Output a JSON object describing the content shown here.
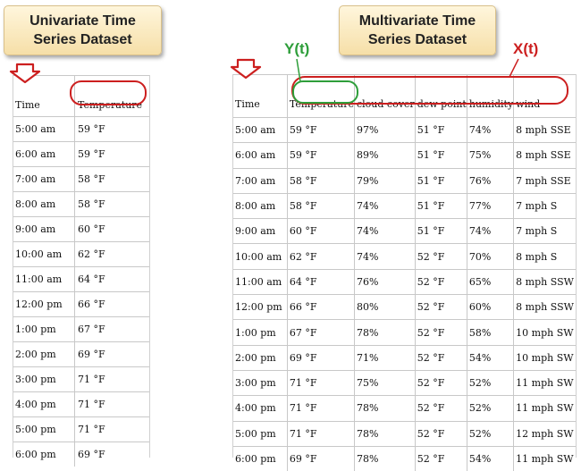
{
  "colors": {
    "annotation_red": "#cc1f1f",
    "annotation_green": "#2e9e3a",
    "title_fill": "#f6dfa8"
  },
  "univariate": {
    "title_line1": "Univariate Time",
    "title_line2": "Series Dataset",
    "headers": [
      "Time",
      "Temperature"
    ],
    "rows": [
      [
        "5:00 am",
        "59 °F"
      ],
      [
        "6:00 am",
        "59 °F"
      ],
      [
        "7:00 am",
        "58 °F"
      ],
      [
        "8:00 am",
        "58 °F"
      ],
      [
        "9:00 am",
        "60 °F"
      ],
      [
        "10:00 am",
        "62 °F"
      ],
      [
        "11:00 am",
        "64 °F"
      ],
      [
        "12:00 pm",
        "66 °F"
      ],
      [
        "1:00 pm",
        "67 °F"
      ],
      [
        "2:00 pm",
        "69 °F"
      ],
      [
        "3:00 pm",
        "71 °F"
      ],
      [
        "4:00 pm",
        "71 °F"
      ],
      [
        "5:00 pm",
        "71 °F"
      ],
      [
        "6:00 pm",
        "69 °F"
      ]
    ]
  },
  "multivariate": {
    "title_line1": "Multivariate Time",
    "title_line2": "Series Dataset",
    "y_label": "Y(t)",
    "x_label": "X(t)",
    "headers": [
      "Time",
      "Temperature",
      "cloud cover",
      "dew point",
      "humidity",
      "wind"
    ],
    "rows": [
      [
        "5:00 am",
        "59 °F",
        "97%",
        "51 °F",
        "74%",
        "8 mph SSE"
      ],
      [
        "6:00 am",
        "59 °F",
        "89%",
        "51 °F",
        "75%",
        "8 mph SSE"
      ],
      [
        "7:00 am",
        "58 °F",
        "79%",
        "51 °F",
        "76%",
        "7 mph SSE"
      ],
      [
        "8:00 am",
        "58 °F",
        "74%",
        "51 °F",
        "77%",
        "7 mph S"
      ],
      [
        "9:00 am",
        "60 °F",
        "74%",
        "51 °F",
        "74%",
        "7 mph S"
      ],
      [
        "10:00 am",
        "62 °F",
        "74%",
        "52 °F",
        "70%",
        "8 mph S"
      ],
      [
        "11:00 am",
        "64 °F",
        "76%",
        "52 °F",
        "65%",
        "8 mph SSW"
      ],
      [
        "12:00 pm",
        "66 °F",
        "80%",
        "52 °F",
        "60%",
        "8 mph SSW"
      ],
      [
        "1:00 pm",
        "67 °F",
        "78%",
        "52 °F",
        "58%",
        "10 mph SW"
      ],
      [
        "2:00 pm",
        "69 °F",
        "71%",
        "52 °F",
        "54%",
        "10 mph SW"
      ],
      [
        "3:00 pm",
        "71 °F",
        "75%",
        "52 °F",
        "52%",
        "11 mph SW"
      ],
      [
        "4:00 pm",
        "71 °F",
        "78%",
        "52 °F",
        "52%",
        "11 mph SW"
      ],
      [
        "5:00 pm",
        "71 °F",
        "78%",
        "52 °F",
        "52%",
        "12 mph SW"
      ],
      [
        "6:00 pm",
        "69 °F",
        "78%",
        "52 °F",
        "54%",
        "11 mph SW"
      ]
    ]
  }
}
